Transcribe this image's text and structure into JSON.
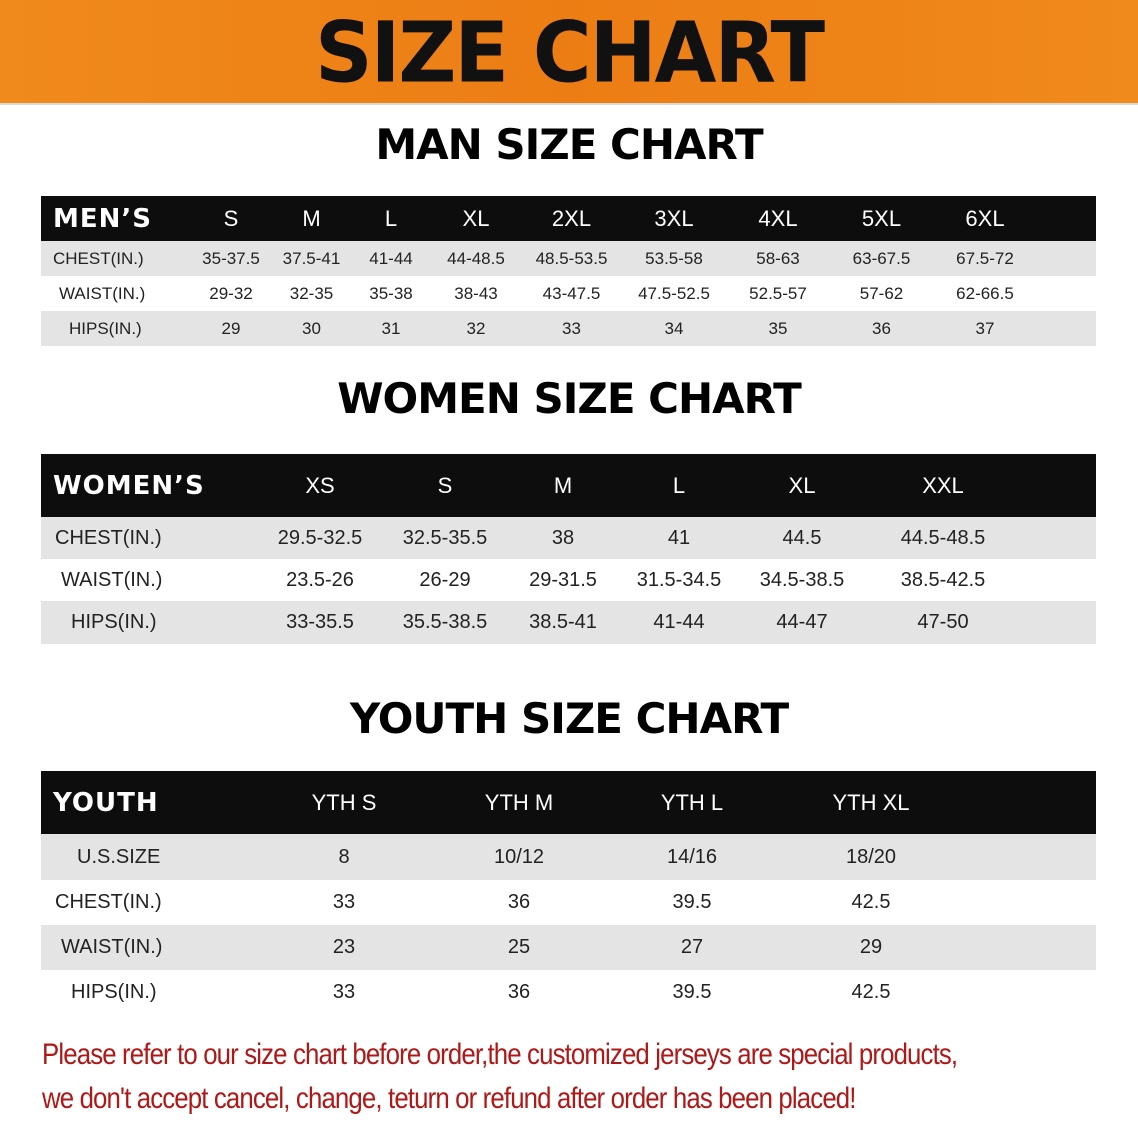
{
  "banner_title": "SIZE CHART",
  "men": {
    "title": "MAN SIZE CHART",
    "header": [
      "MEN’S",
      "S",
      "M",
      "L",
      "XL",
      "2XL",
      "3XL",
      "4XL",
      "5XL",
      "6XL"
    ],
    "rows": [
      [
        "CHEST(IN.)",
        "35-37.5",
        "37.5-41",
        "41-44",
        "44-48.5",
        "48.5-53.5",
        "53.5-58",
        "58-63",
        "63-67.5",
        "67.5-72"
      ],
      [
        "WAIST(IN.)",
        "29-32",
        "32-35",
        "35-38",
        "38-43",
        "43-47.5",
        "47.5-52.5",
        "52.5-57",
        "57-62",
        "62-66.5"
      ],
      [
        "HIPS(IN.)",
        "29",
        "30",
        "31",
        "32",
        "33",
        "34",
        "35",
        "36",
        "37"
      ]
    ]
  },
  "women": {
    "title": "WOMEN SIZE CHART",
    "header": [
      "WOMEN’S",
      "XS",
      "S",
      "M",
      "L",
      "XL",
      "XXL"
    ],
    "rows": [
      [
        "CHEST(IN.)",
        "29.5-32.5",
        "32.5-35.5",
        "38",
        "41",
        "44.5",
        "44.5-48.5"
      ],
      [
        "WAIST(IN.)",
        "23.5-26",
        "26-29",
        "29-31.5",
        "31.5-34.5",
        "34.5-38.5",
        "38.5-42.5"
      ],
      [
        "HIPS(IN.)",
        "33-35.5",
        "35.5-38.5",
        "38.5-41",
        "41-44",
        "44-47",
        "47-50"
      ]
    ]
  },
  "youth": {
    "title": "YOUTH SIZE CHART",
    "header": [
      "YOUTH",
      "YTH S",
      "YTH M",
      "YTH L",
      "YTH XL"
    ],
    "rows": [
      [
        "U.S.SIZE",
        "8",
        "10/12",
        "14/16",
        "18/20"
      ],
      [
        "CHEST(IN.)",
        "33",
        "36",
        "39.5",
        "42.5"
      ],
      [
        "WAIST(IN.)",
        "23",
        "25",
        "27",
        "29"
      ],
      [
        "HIPS(IN.)",
        "33",
        "36",
        "39.5",
        "42.5"
      ]
    ]
  },
  "notice": [
    "Please refer to our size chart before order,the customized jerseys are special products,",
    "we don't accept cancel, change, teturn or refund after order has been placed!"
  ],
  "colors": {
    "banner": "#ec7d14",
    "header_row": "#0d0d0d",
    "stripe": "#e4e4e5",
    "notice_text": "#b01818"
  }
}
